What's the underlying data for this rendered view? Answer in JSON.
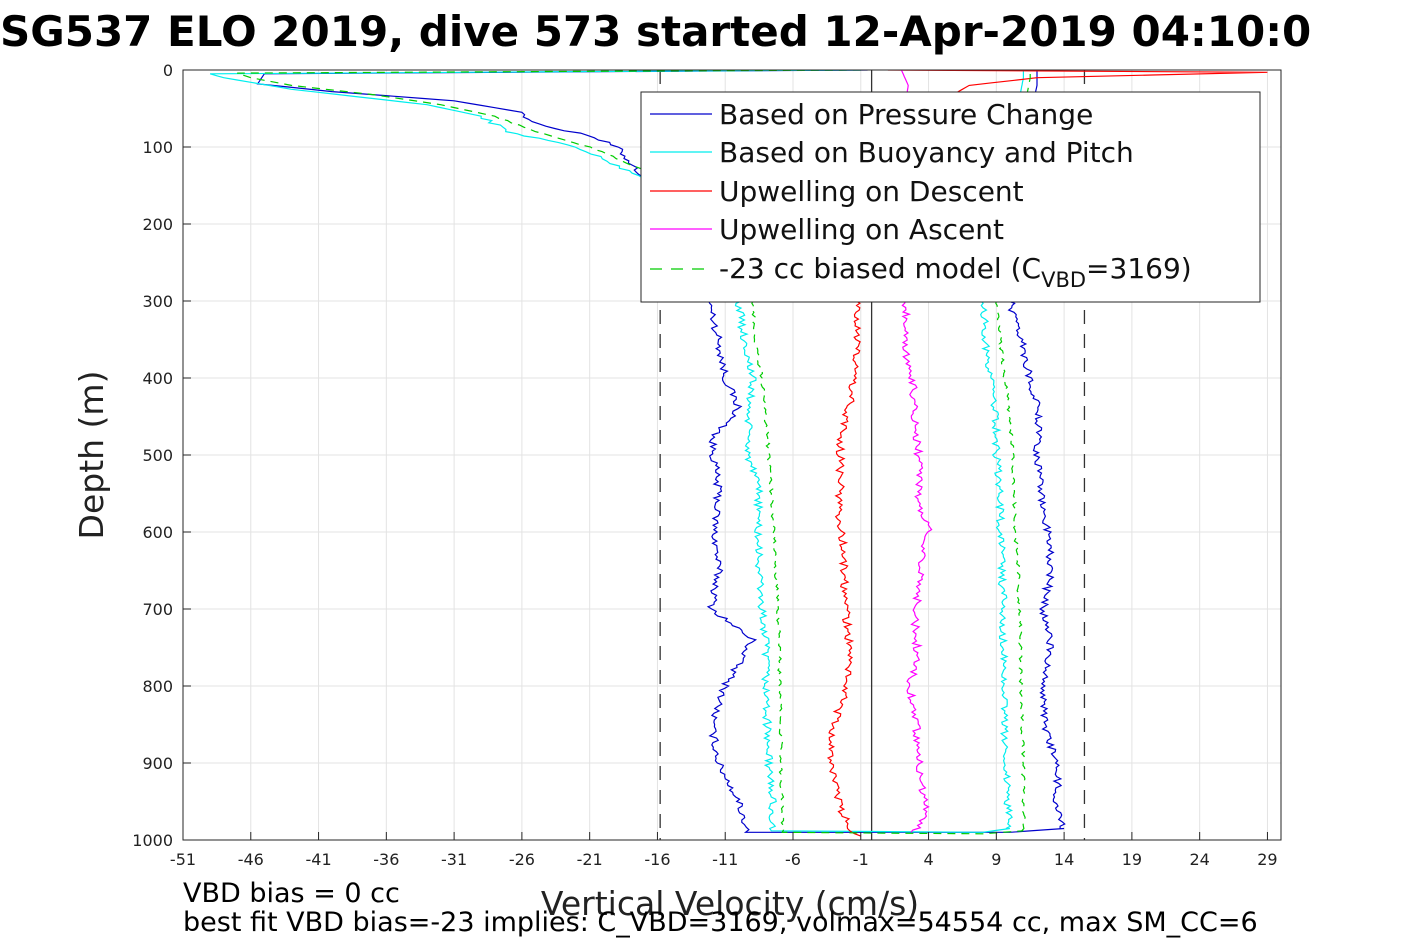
{
  "chart_data": {
    "type": "line",
    "title": "SG537 ELO 2019, dive 573 started 12-Apr-2019 04:10:0",
    "xlabel": "Vertical Velocity (cm/s)",
    "ylabel": "Depth (m)",
    "xlim": [
      -51,
      30
    ],
    "ylim": [
      0,
      1000
    ],
    "y_reversed": true,
    "grid": true,
    "legend_position": "top-right",
    "x_ticks": [
      "-51",
      "-46",
      "-41",
      "-36",
      "-31",
      "-26",
      "-21",
      "-16",
      "-11",
      "-6",
      "-1",
      "4",
      "9",
      "14",
      "19",
      "24",
      "29"
    ],
    "y_ticks": [
      "0",
      "100",
      "200",
      "300",
      "400",
      "500",
      "600",
      "700",
      "800",
      "900",
      "1000"
    ],
    "reference_lines": [
      {
        "style": "dashed",
        "x": -15.8
      },
      {
        "style": "solid",
        "x": -0.2
      },
      {
        "style": "dashed",
        "x": 15.5
      }
    ],
    "legend": {
      "pressure": "Based on Pressure Change",
      "buoyancy": "Based on Buoyancy and Pitch",
      "up_descent": "Upwelling on Descent",
      "up_ascent": "Upwelling on Ascent",
      "model_prefix": "-23 cc biased model (C",
      "model_sub": "VBD",
      "model_suffix": "=3169)"
    },
    "series": [
      {
        "key": "pressure_descent",
        "color": "#0000cc",
        "legend": "pressure",
        "hidden_above": 300,
        "points": [
          [
            -0.5,
            0
          ],
          [
            -45,
            5
          ],
          [
            -45.5,
            18
          ],
          [
            -40,
            28
          ],
          [
            -31,
            40
          ],
          [
            -26,
            55
          ],
          [
            -25,
            70
          ],
          [
            -21,
            85
          ],
          [
            -19,
            100
          ],
          [
            -17.5,
            130
          ],
          [
            -16,
            160
          ],
          [
            -14,
            190
          ],
          [
            -12,
            230
          ],
          [
            -12.2,
            300
          ],
          [
            -11.5,
            350
          ],
          [
            -11,
            400
          ],
          [
            -10,
            440
          ],
          [
            -12,
            480
          ],
          [
            -11.5,
            550
          ],
          [
            -11.8,
            600
          ],
          [
            -11.5,
            650
          ],
          [
            -12,
            700
          ],
          [
            -9,
            740
          ],
          [
            -10,
            770
          ],
          [
            -11,
            800
          ],
          [
            -12,
            850
          ],
          [
            -11.5,
            900
          ],
          [
            -10,
            950
          ],
          [
            -9.5,
            980
          ],
          [
            -9.5,
            990
          ],
          [
            10,
            990
          ],
          [
            14,
            985
          ]
        ]
      },
      {
        "key": "pressure_ascent",
        "color": "#0000cc",
        "legend": "pressure",
        "hidden_above": 300,
        "points": [
          [
            14,
            985
          ],
          [
            13.5,
            950
          ],
          [
            13.5,
            900
          ],
          [
            12.5,
            850
          ],
          [
            12.5,
            800
          ],
          [
            13,
            750
          ],
          [
            12.5,
            700
          ],
          [
            13,
            650
          ],
          [
            12.8,
            600
          ],
          [
            12.3,
            550
          ],
          [
            12,
            500
          ],
          [
            12.2,
            450
          ],
          [
            11.5,
            400
          ],
          [
            10.8,
            350
          ],
          [
            10,
            300
          ],
          [
            10.5,
            200
          ],
          [
            11,
            100
          ],
          [
            12,
            20
          ],
          [
            12,
            0
          ]
        ]
      },
      {
        "key": "buoyancy_descent",
        "color": "#00eeee",
        "legend": "buoyancy",
        "hidden_above": 300,
        "points": [
          [
            -1,
            0
          ],
          [
            -49,
            5
          ],
          [
            -48,
            10
          ],
          [
            -43,
            25
          ],
          [
            -38,
            35
          ],
          [
            -33,
            45
          ],
          [
            -29,
            60
          ],
          [
            -27,
            80
          ],
          [
            -22,
            100
          ],
          [
            -17,
            140
          ],
          [
            -14,
            180
          ],
          [
            -12,
            230
          ],
          [
            -10,
            300
          ],
          [
            -9.7,
            340
          ],
          [
            -9,
            400
          ],
          [
            -9.3,
            450
          ],
          [
            -9.3,
            500
          ],
          [
            -8.5,
            550
          ],
          [
            -8.6,
            600
          ],
          [
            -8.5,
            650
          ],
          [
            -8.3,
            700
          ],
          [
            -8,
            750
          ],
          [
            -8,
            800
          ],
          [
            -7.9,
            850
          ],
          [
            -7.8,
            900
          ],
          [
            -7.5,
            950
          ],
          [
            -7.6,
            988
          ],
          [
            8,
            990
          ],
          [
            10,
            985
          ]
        ]
      },
      {
        "key": "buoyancy_ascent",
        "color": "#00eeee",
        "legend": "buoyancy",
        "hidden_above": 300,
        "points": [
          [
            10,
            985
          ],
          [
            9.8,
            950
          ],
          [
            9.7,
            900
          ],
          [
            9.6,
            850
          ],
          [
            9.5,
            800
          ],
          [
            9.5,
            750
          ],
          [
            9.5,
            700
          ],
          [
            9.4,
            650
          ],
          [
            9.3,
            600
          ],
          [
            9.2,
            550
          ],
          [
            9,
            500
          ],
          [
            9,
            450
          ],
          [
            8.5,
            400
          ],
          [
            8.2,
            350
          ],
          [
            8,
            300
          ],
          [
            9,
            200
          ],
          [
            10,
            100
          ],
          [
            11,
            10
          ],
          [
            11,
            0
          ]
        ]
      },
      {
        "key": "upwelling_descent",
        "color": "#ff0000",
        "legend": "up_descent",
        "hidden_above": 300,
        "points": [
          [
            1,
            0
          ],
          [
            29,
            3
          ],
          [
            12,
            10
          ],
          [
            7,
            20
          ],
          [
            5,
            40
          ],
          [
            1,
            100
          ],
          [
            -1,
            200
          ],
          [
            -1.2,
            300
          ],
          [
            -1.3,
            350
          ],
          [
            -1.5,
            400
          ],
          [
            -1.8,
            430
          ],
          [
            -2.5,
            480
          ],
          [
            -2.5,
            520
          ],
          [
            -2.6,
            580
          ],
          [
            -2.3,
            620
          ],
          [
            -2.2,
            680
          ],
          [
            -2,
            720
          ],
          [
            -1.8,
            760
          ],
          [
            -2,
            800
          ],
          [
            -2.6,
            830
          ],
          [
            -3.3,
            870
          ],
          [
            -3,
            920
          ],
          [
            -2.5,
            960
          ],
          [
            -1.8,
            985
          ],
          [
            -1,
            995
          ]
        ]
      },
      {
        "key": "upwelling_ascent",
        "color": "#ff00ff",
        "legend": "up_ascent",
        "hidden_above": 300,
        "points": [
          [
            3,
            990
          ],
          [
            3.8,
            960
          ],
          [
            3.4,
            920
          ],
          [
            3.3,
            880
          ],
          [
            3,
            840
          ],
          [
            2.6,
            800
          ],
          [
            3.2,
            760
          ],
          [
            3,
            720
          ],
          [
            3.2,
            680
          ],
          [
            3.5,
            640
          ],
          [
            4,
            600
          ],
          [
            3.3,
            560
          ],
          [
            3.4,
            520
          ],
          [
            3.1,
            480
          ],
          [
            3,
            440
          ],
          [
            2.8,
            400
          ],
          [
            2.2,
            360
          ],
          [
            2.4,
            320
          ],
          [
            2.3,
            300
          ],
          [
            2,
            200
          ],
          [
            1.8,
            100
          ],
          [
            2.5,
            20
          ],
          [
            2,
            0
          ]
        ]
      },
      {
        "key": "model_descent",
        "color": "#00cc00",
        "legend": "model",
        "dashed": true,
        "hidden_above": 300,
        "points": [
          [
            -1,
            0
          ],
          [
            -47,
            4
          ],
          [
            -46,
            10
          ],
          [
            -43,
            20
          ],
          [
            -37,
            32
          ],
          [
            -32,
            45
          ],
          [
            -28,
            60
          ],
          [
            -25,
            80
          ],
          [
            -21,
            100
          ],
          [
            -17,
            130
          ],
          [
            -14,
            160
          ],
          [
            -12,
            200
          ],
          [
            -9,
            300
          ],
          [
            -8.8,
            350
          ],
          [
            -8.3,
            400
          ],
          [
            -8,
            450
          ],
          [
            -7.8,
            500
          ],
          [
            -7.6,
            550
          ],
          [
            -7.4,
            600
          ],
          [
            -7.3,
            650
          ],
          [
            -7.1,
            700
          ],
          [
            -7,
            750
          ],
          [
            -7,
            800
          ],
          [
            -6.9,
            850
          ],
          [
            -6.9,
            900
          ],
          [
            -6.8,
            950
          ],
          [
            -6.8,
            990
          ],
          [
            8,
            992
          ],
          [
            11,
            988
          ]
        ]
      },
      {
        "key": "model_ascent",
        "color": "#00cc00",
        "legend": "model",
        "dashed": true,
        "hidden_above": 300,
        "points": [
          [
            11,
            988
          ],
          [
            11,
            950
          ],
          [
            11,
            900
          ],
          [
            10.9,
            850
          ],
          [
            10.8,
            800
          ],
          [
            10.8,
            750
          ],
          [
            10.7,
            700
          ],
          [
            10.6,
            650
          ],
          [
            10.4,
            600
          ],
          [
            10.3,
            550
          ],
          [
            10.2,
            500
          ],
          [
            10,
            450
          ],
          [
            9.6,
            400
          ],
          [
            9.3,
            350
          ],
          [
            9,
            300
          ],
          [
            10,
            200
          ],
          [
            10.5,
            100
          ],
          [
            11.5,
            10
          ],
          [
            11.5,
            0
          ]
        ]
      }
    ]
  },
  "notes": {
    "line1": "VBD bias = 0 cc",
    "line2": "best fit VBD bias=-23 implies: C_VBD=3169, volmax=54554 cc, max SM_CC=6"
  }
}
